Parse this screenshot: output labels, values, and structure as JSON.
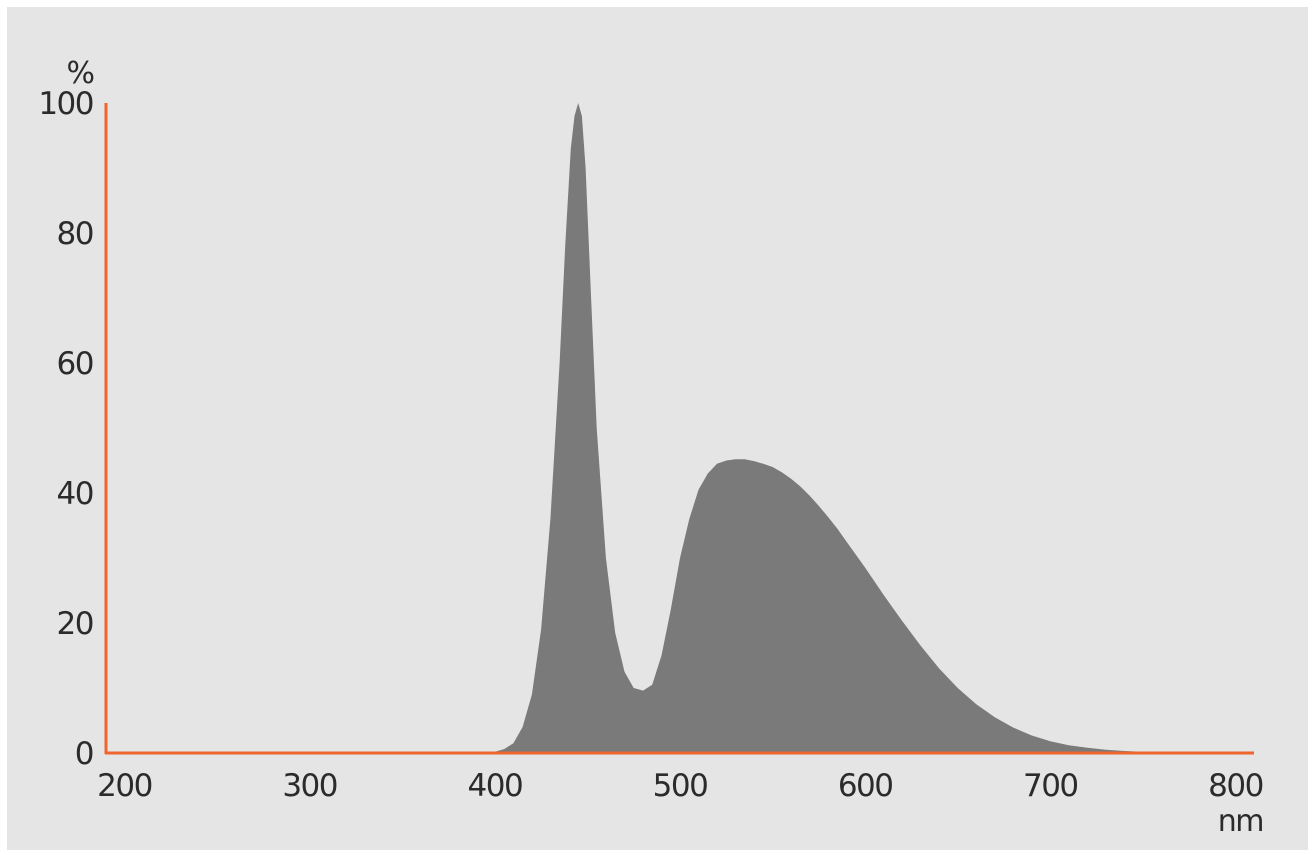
{
  "colors": {
    "background": "#e5e5e5",
    "axis": "#f0642d",
    "area_fill": "#7a7a7a",
    "text": "#2b2b2b"
  },
  "chart_data": {
    "type": "area",
    "xlabel": "nm",
    "ylabel": "%",
    "xlim": [
      190,
      810
    ],
    "ylim": [
      0,
      100
    ],
    "x_ticks": [
      200,
      300,
      400,
      500,
      600,
      700,
      800
    ],
    "y_ticks": [
      0,
      20,
      40,
      60,
      80,
      100
    ],
    "grid": false,
    "legend": "none",
    "series": [
      {
        "x": [
          190,
          380,
          395,
          400,
          405,
          410,
          415,
          420,
          425,
          430,
          435,
          438,
          441,
          443,
          445,
          447,
          449,
          452,
          455,
          460,
          465,
          470,
          475,
          480,
          485,
          490,
          495,
          500,
          505,
          510,
          515,
          520,
          525,
          530,
          535,
          540,
          545,
          550,
          555,
          560,
          565,
          570,
          575,
          580,
          585,
          590,
          595,
          600,
          610,
          620,
          630,
          640,
          650,
          660,
          670,
          680,
          690,
          700,
          710,
          720,
          730,
          740,
          750,
          760,
          770,
          780,
          790,
          800,
          810
        ],
        "y": [
          0,
          0,
          0.1,
          0.2,
          0.6,
          1.5,
          4,
          9,
          19,
          36,
          60,
          78,
          93,
          98,
          100,
          98,
          90,
          70,
          50,
          30,
          18.5,
          12.5,
          10,
          9.6,
          10.5,
          15,
          22,
          30,
          36,
          40.5,
          43,
          44.5,
          45,
          45.2,
          45.2,
          44.9,
          44.5,
          44,
          43.2,
          42.2,
          41,
          39.6,
          38,
          36.3,
          34.5,
          32.5,
          30.5,
          28.5,
          24.3,
          20.3,
          16.5,
          13,
          10,
          7.5,
          5.5,
          3.9,
          2.7,
          1.8,
          1.2,
          0.8,
          0.5,
          0.3,
          0.2,
          0.1,
          0.05,
          0.02,
          0.01,
          0,
          0
        ]
      }
    ]
  }
}
